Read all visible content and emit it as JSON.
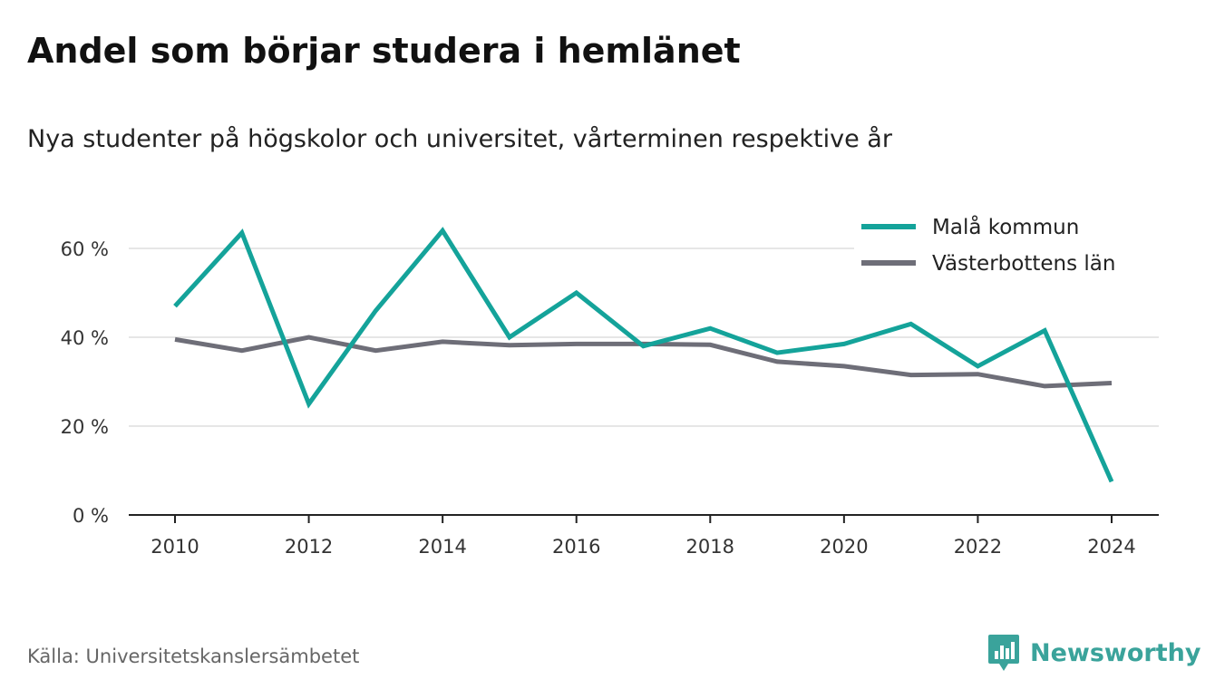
{
  "title": "Andel som börjar studera i hemlänet",
  "subtitle": "Nya studenter på högskolor och universitet, vårterminen respektive år",
  "source": "Källa: Universitetskanslersämbetet",
  "logo_text": "Newsworthy",
  "colors": {
    "mala": "#14a39a",
    "vasterbotten": "#6e6e78",
    "grid": "#dddddd",
    "axis": "#222222",
    "logo": "#3aa39b"
  },
  "chart_data": {
    "type": "line",
    "x": [
      2010,
      2011,
      2012,
      2013,
      2014,
      2015,
      2016,
      2017,
      2018,
      2019,
      2020,
      2021,
      2022,
      2023,
      2024
    ],
    "series": [
      {
        "name": "Malå kommun",
        "values": [
          47,
          63.5,
          25,
          46,
          64,
          40,
          50,
          38,
          42,
          36.5,
          38.5,
          43,
          33.5,
          41.5,
          7.5
        ]
      },
      {
        "name": "Västerbottens län",
        "values": [
          39.5,
          37,
          40,
          37,
          39,
          38.2,
          38.5,
          38.5,
          38.3,
          34.5,
          33.5,
          31.5,
          31.7,
          29,
          29.7
        ]
      }
    ],
    "xticks": [
      "2010",
      "2012",
      "2014",
      "2016",
      "2018",
      "2020",
      "2022",
      "2024"
    ],
    "yticks": [
      "0 %",
      "20 %",
      "40 %",
      "60 %"
    ],
    "ytick_values": [
      0,
      20,
      40,
      60
    ],
    "xlim": [
      2010,
      2024
    ],
    "ylim": [
      0,
      70
    ],
    "grid": true,
    "legend": "top-right"
  }
}
